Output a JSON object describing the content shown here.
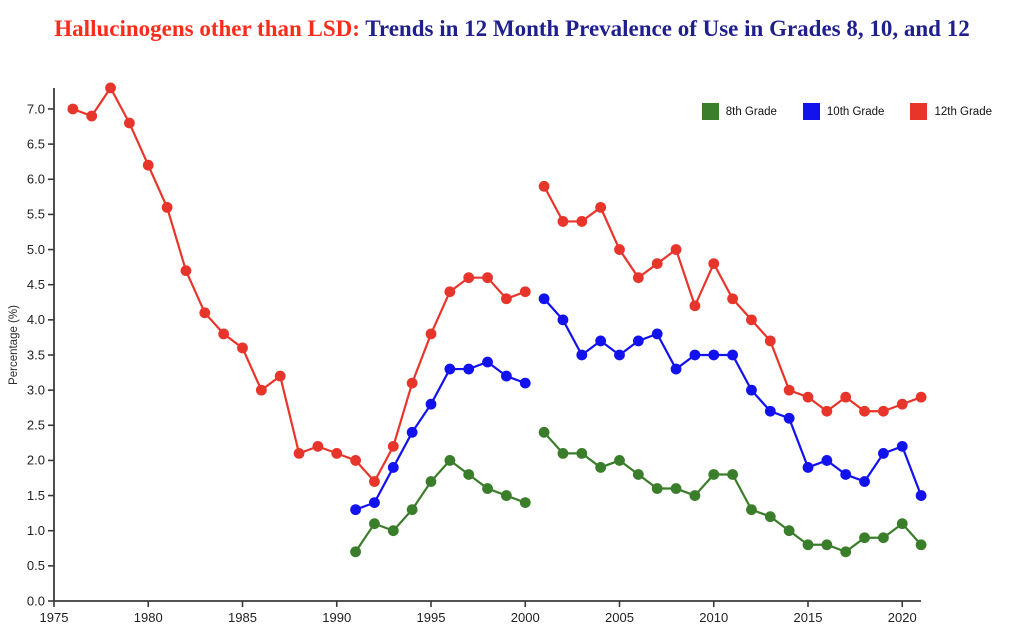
{
  "title": {
    "highlight": "Hallucinogens other than LSD:",
    "rest": "Trends in 12 Month Prevalence of Use in Grades 8, 10, and 12",
    "highlight_color": "#fb2c1c",
    "rest_color": "#1f1f8e"
  },
  "axis": {
    "color": "#3a3a3a",
    "tick_label_color": "#222222"
  },
  "chart_data": {
    "type": "line",
    "title": "Hallucinogens other than LSD: Trends in 12 Month Prevalence of Use in Grades 8, 10, and 12",
    "xlabel": "",
    "ylabel": "Percentage (%)",
    "xlim": [
      1975,
      2021.5
    ],
    "ylim": [
      0,
      7.3
    ],
    "x_ticks": [
      "1975",
      "1980",
      "1985",
      "1990",
      "1995",
      "2000",
      "2005",
      "2010",
      "2015",
      "2020"
    ],
    "y_ticks": [
      "0.0",
      "0.5",
      "1.0",
      "1.5",
      "2.0",
      "2.5",
      "3.0",
      "3.5",
      "4.0",
      "4.5",
      "5.0",
      "5.5",
      "6.0",
      "6.5",
      "7.0"
    ],
    "grid": false,
    "legend_position": "top-right",
    "marker": "circle",
    "series": [
      {
        "name": "8th Grade",
        "color": "#3a7d2a",
        "segments": [
          {
            "years": [
              1991,
              1992,
              1993,
              1994,
              1995,
              1996,
              1997,
              1998,
              1999,
              2000
            ],
            "values": [
              0.7,
              1.1,
              1.0,
              1.3,
              1.7,
              2.0,
              1.8,
              1.6,
              1.5,
              1.4
            ]
          },
          {
            "years": [
              2001,
              2002,
              2003,
              2004,
              2005,
              2006,
              2007,
              2008,
              2009,
              2010,
              2011,
              2012,
              2013,
              2014,
              2015,
              2016,
              2017,
              2018,
              2019,
              2020,
              2021
            ],
            "values": [
              2.4,
              2.1,
              2.1,
              1.9,
              2.0,
              1.8,
              1.6,
              1.6,
              1.5,
              1.8,
              1.8,
              1.3,
              1.2,
              1.0,
              0.8,
              0.8,
              0.7,
              0.9,
              0.9,
              1.1,
              0.8
            ]
          }
        ]
      },
      {
        "name": "10th Grade",
        "color": "#1212ee",
        "segments": [
          {
            "years": [
              1991,
              1992,
              1993,
              1994,
              1995,
              1996,
              1997,
              1998,
              1999,
              2000
            ],
            "values": [
              1.3,
              1.4,
              1.9,
              2.4,
              2.8,
              3.3,
              3.3,
              3.4,
              3.2,
              3.1
            ]
          },
          {
            "years": [
              2001,
              2002,
              2003,
              2004,
              2005,
              2006,
              2007,
              2008,
              2009,
              2010,
              2011,
              2012,
              2013,
              2014,
              2015,
              2016,
              2017,
              2018,
              2019,
              2020,
              2021
            ],
            "values": [
              4.3,
              4.0,
              3.5,
              3.7,
              3.5,
              3.7,
              3.8,
              3.3,
              3.5,
              3.5,
              3.5,
              3.0,
              2.7,
              2.6,
              1.9,
              2.0,
              1.8,
              1.7,
              2.1,
              2.2,
              1.5
            ]
          }
        ]
      },
      {
        "name": "12th Grade",
        "color": "#e8352b",
        "segments": [
          {
            "years": [
              1976,
              1977,
              1978,
              1979,
              1980,
              1981,
              1982,
              1983,
              1984,
              1985,
              1986,
              1987,
              1988,
              1989,
              1990,
              1991,
              1992,
              1993,
              1994,
              1995,
              1996,
              1997,
              1998,
              1999,
              2000
            ],
            "values": [
              7.0,
              6.9,
              7.3,
              6.8,
              6.2,
              5.6,
              4.7,
              4.1,
              3.8,
              3.6,
              3.0,
              3.2,
              2.1,
              2.2,
              2.1,
              2.0,
              1.7,
              2.2,
              3.1,
              3.8,
              4.4,
              4.6,
              4.6,
              4.3,
              4.4
            ]
          },
          {
            "years": [
              2001,
              2002,
              2003,
              2004,
              2005,
              2006,
              2007,
              2008,
              2009,
              2010,
              2011,
              2012,
              2013,
              2014,
              2015,
              2016,
              2017,
              2018,
              2019,
              2020,
              2021
            ],
            "values": [
              5.9,
              5.4,
              5.4,
              5.6,
              5.0,
              4.6,
              4.8,
              5.0,
              4.2,
              4.8,
              4.3,
              4.0,
              3.7,
              3.0,
              2.9,
              2.7,
              2.9,
              2.7,
              2.7,
              2.8,
              2.9
            ]
          }
        ]
      }
    ]
  }
}
